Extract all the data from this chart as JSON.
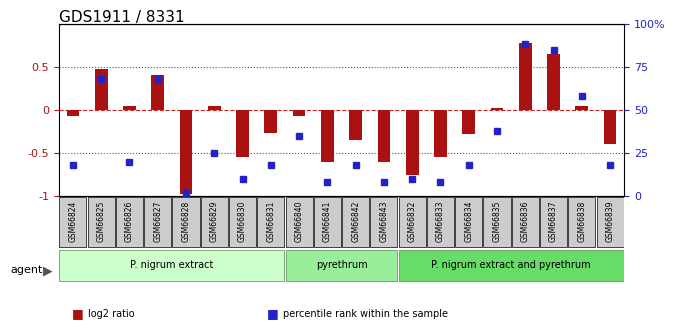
{
  "title": "GDS1911 / 8331",
  "samples": [
    "GSM66824",
    "GSM66825",
    "GSM66826",
    "GSM66827",
    "GSM66828",
    "GSM66829",
    "GSM66830",
    "GSM66831",
    "GSM66840",
    "GSM66841",
    "GSM66842",
    "GSM66843",
    "GSM66832",
    "GSM66833",
    "GSM66834",
    "GSM66835",
    "GSM66836",
    "GSM66837",
    "GSM66838",
    "GSM66839"
  ],
  "log2_ratio": [
    -0.07,
    0.47,
    0.05,
    0.4,
    -0.98,
    0.05,
    -0.55,
    -0.27,
    -0.07,
    -0.6,
    -0.35,
    -0.6,
    -0.75,
    -0.55,
    -0.28,
    0.02,
    0.78,
    0.65,
    0.05,
    -0.4
  ],
  "pct_rank": [
    18,
    68,
    20,
    68,
    2,
    25,
    10,
    18,
    35,
    8,
    18,
    8,
    10,
    8,
    18,
    38,
    88,
    85,
    58,
    18
  ],
  "groups": [
    {
      "label": "P. nigrum extract",
      "start": 0,
      "end": 7,
      "color": "#ccffcc"
    },
    {
      "label": "pyrethrum",
      "start": 8,
      "end": 11,
      "color": "#99ee99"
    },
    {
      "label": "P. nigrum extract and pyrethrum",
      "start": 12,
      "end": 19,
      "color": "#66dd66"
    }
  ],
  "bar_color": "#aa1111",
  "dot_color": "#2222cc",
  "zero_line_color": "#cc2222",
  "dotted_line_color": "#555555",
  "ylim": [
    -1.0,
    1.0
  ],
  "yticks_left": [
    -1,
    -0.5,
    0,
    0.5
  ],
  "ytick_labels_left": [
    "-1",
    "-0.5",
    "0",
    "0.5"
  ],
  "yticks_right": [
    0,
    25,
    50,
    75,
    100
  ],
  "ytick_labels_right": [
    "0",
    "25",
    "50",
    "75",
    "100%"
  ],
  "agent_label": "agent",
  "legend": [
    {
      "color": "#aa1111",
      "label": "log2 ratio"
    },
    {
      "color": "#2222cc",
      "label": "percentile rank within the sample"
    }
  ]
}
